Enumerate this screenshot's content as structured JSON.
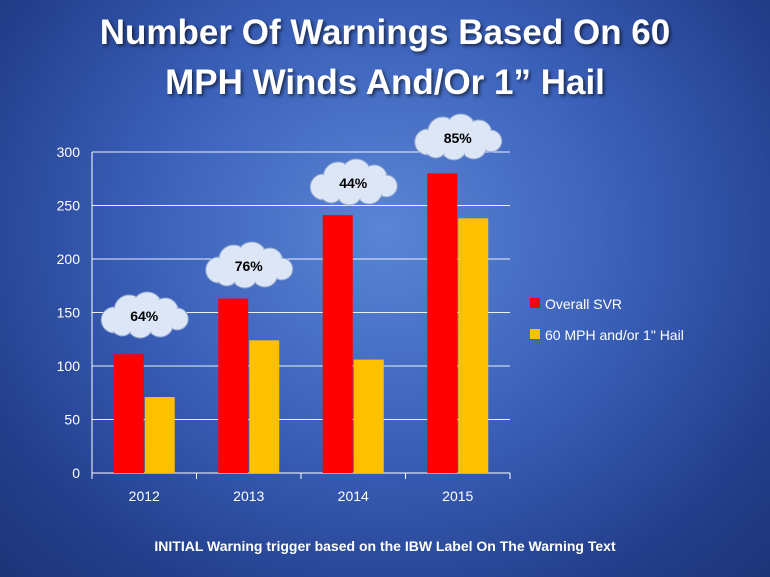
{
  "title_line1": "Number Of Warnings Based On 60",
  "title_line2": "MPH Winds And/Or 1” Hail",
  "footer": "INITIAL Warning trigger based on the IBW Label On The Warning Text",
  "chart_data": {
    "type": "bar",
    "categories": [
      "2012",
      "2013",
      "2014",
      "2015"
    ],
    "series": [
      {
        "name": "Overall SVR",
        "color": "#ff0000",
        "values": [
          111,
          163,
          241,
          280
        ]
      },
      {
        "name": "60 MPH and/or 1\" Hail",
        "color": "#ffc000",
        "values": [
          71,
          124,
          106,
          238
        ]
      }
    ],
    "annotations": [
      "64%",
      "76%",
      "44%",
      "85%"
    ],
    "ylim": [
      0,
      300
    ],
    "yticks": [
      "0",
      "50",
      "100",
      "150",
      "200",
      "250",
      "300"
    ],
    "grid": true,
    "legend_position": "right",
    "background_color": "#3a5fb8",
    "annotation_shape": "cloud"
  }
}
